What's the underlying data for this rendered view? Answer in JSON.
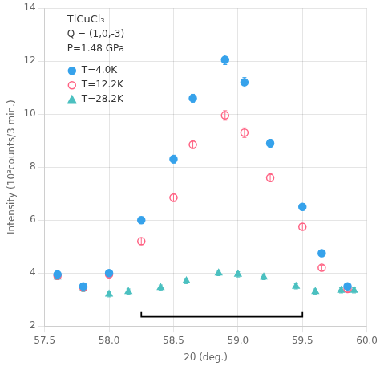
{
  "chart_data": {
    "type": "scatter",
    "annotations": [
      "TlCuCl₃",
      "Q = (1,0,-3)",
      "P=1.48 GPa"
    ],
    "x_label": "2θ (deg.)",
    "y_label": "Intensity (10³counts/3 min.)",
    "xlim": [
      57.5,
      60.0
    ],
    "ylim": [
      2,
      14
    ],
    "xticks": [
      57.5,
      {
        "value": 58,
        "label": "58.0"
      },
      58.5,
      {
        "value": 59,
        "label": "59.0"
      },
      59.5,
      {
        "value": 60,
        "label": "60.0"
      }
    ],
    "yticks": [
      2,
      4,
      6,
      8,
      10,
      12,
      14
    ],
    "grid": true,
    "legend": "upper left",
    "series": [
      {
        "name": "T=4.0K",
        "marker": "circle",
        "x": [
          57.6,
          57.8,
          58.0,
          58.25,
          58.5,
          58.65,
          58.9,
          59.05,
          59.25,
          59.5,
          59.65,
          59.85
        ],
        "values": [
          3.95,
          3.5,
          4.0,
          6.0,
          8.3,
          10.6,
          12.05,
          11.2,
          8.9,
          6.5,
          4.75,
          3.5
        ],
        "yerr": [
          0.1,
          0.1,
          0.1,
          0.12,
          0.15,
          0.15,
          0.18,
          0.18,
          0.15,
          0.12,
          0.1,
          0.1
        ]
      },
      {
        "name": "T=12.2K",
        "marker": "open_circle",
        "x": [
          57.6,
          57.8,
          58.0,
          58.25,
          58.5,
          58.65,
          58.9,
          59.05,
          59.25,
          59.5,
          59.65,
          59.85
        ],
        "values": [
          3.9,
          3.45,
          3.95,
          5.2,
          6.85,
          8.85,
          9.95,
          9.3,
          7.6,
          5.75,
          4.2,
          3.4
        ],
        "yerr": [
          0.1,
          0.1,
          0.1,
          0.12,
          0.15,
          0.15,
          0.18,
          0.18,
          0.15,
          0.12,
          0.1,
          0.1
        ]
      },
      {
        "name": "T=28.2K",
        "marker": "triangle",
        "x": [
          57.6,
          57.8,
          58.0,
          58.15,
          58.4,
          58.6,
          58.85,
          59.0,
          59.2,
          59.45,
          59.6,
          59.8,
          59.9
        ],
        "values": [
          3.85,
          3.4,
          3.2,
          3.3,
          3.45,
          3.7,
          4.0,
          3.95,
          3.85,
          3.5,
          3.3,
          3.35,
          3.35
        ],
        "yerr": [
          0.1,
          0.1,
          0.1,
          0.1,
          0.1,
          0.1,
          0.1,
          0.1,
          0.1,
          0.1,
          0.1,
          0.1,
          0.1
        ]
      }
    ],
    "bracket": {
      "x": [
        58.25,
        59.5
      ],
      "y": 2.35,
      "tick_height": 0.18
    }
  }
}
